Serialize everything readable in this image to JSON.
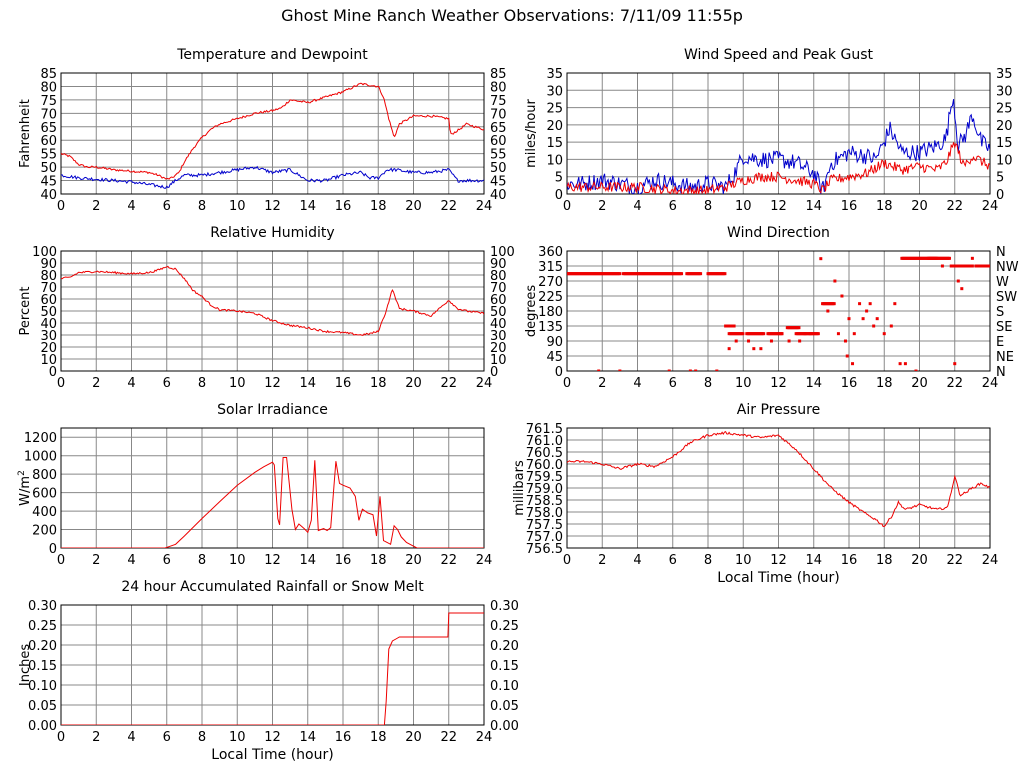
{
  "page": {
    "title": "Ghost Mine Ranch Weather Observations: 7/11/09 11:55p"
  },
  "colors": {
    "red": "#ee0000",
    "blue": "#0000cc",
    "grid": "#888888",
    "frame": "#000000"
  },
  "chart_data": [
    {
      "id": "temp",
      "type": "line",
      "title": "Temperature and Dewpoint",
      "ylabel": "Fahrenheit",
      "xlabel": "",
      "xlim": [
        0,
        24
      ],
      "ylim": [
        40,
        85
      ],
      "xticks": [
        0,
        2,
        4,
        6,
        8,
        10,
        12,
        14,
        16,
        18,
        20,
        22,
        24
      ],
      "yticks": [
        40,
        45,
        50,
        55,
        60,
        65,
        70,
        75,
        80,
        85
      ],
      "right_ticks": [
        "40",
        "45",
        "50",
        "55",
        "60",
        "65",
        "70",
        "75",
        "80",
        "85"
      ],
      "series": [
        {
          "color": "red",
          "noise": 0.4,
          "x": [
            0,
            0.5,
            1,
            1.5,
            2,
            3,
            4,
            5,
            5.5,
            6,
            6.3,
            6.7,
            7,
            7.5,
            8,
            8.5,
            9,
            9.5,
            10,
            11,
            12,
            12.5,
            13,
            14,
            15,
            16,
            17,
            17.5,
            18,
            18.3,
            18.6,
            18.9,
            19.2,
            20,
            21,
            22,
            22.1,
            22.6,
            23,
            24
          ],
          "y": [
            55,
            54,
            51,
            50,
            50,
            49,
            48.5,
            48,
            47,
            45.5,
            46,
            48,
            52,
            57,
            61,
            64,
            66,
            67,
            68,
            70,
            71,
            72,
            75,
            74,
            76,
            78,
            81,
            80.5,
            80,
            76,
            68,
            61,
            66,
            69,
            69,
            68,
            62,
            64,
            66,
            64
          ]
        },
        {
          "color": "blue",
          "noise": 0.6,
          "x": [
            0,
            1,
            2,
            3,
            4,
            5,
            6,
            6.5,
            7,
            8,
            9,
            10,
            11,
            12,
            13,
            14,
            15,
            16,
            17,
            17.5,
            18,
            18.5,
            19,
            20,
            21,
            22,
            22.5,
            23,
            24
          ],
          "y": [
            47,
            46,
            45.5,
            45,
            44.5,
            43.5,
            42.5,
            45,
            47,
            47,
            48,
            49,
            50,
            48,
            49,
            45,
            45,
            47,
            48,
            46,
            46,
            49,
            49,
            48,
            48,
            49,
            45,
            45,
            45
          ]
        }
      ]
    },
    {
      "id": "wind",
      "type": "line",
      "title": "Wind Speed and Peak Gust",
      "ylabel": "miles/hour",
      "xlabel": "",
      "xlim": [
        0,
        24
      ],
      "ylim": [
        0,
        35
      ],
      "xticks": [
        0,
        2,
        4,
        6,
        8,
        10,
        12,
        14,
        16,
        18,
        20,
        22,
        24
      ],
      "yticks": [
        0,
        5,
        10,
        15,
        20,
        25,
        30,
        35
      ],
      "right_ticks": [
        "0",
        "5",
        "10",
        "15",
        "20",
        "25",
        "30",
        "35"
      ],
      "series": [
        {
          "color": "blue",
          "noise": 2.5,
          "x": [
            0,
            1,
            2,
            3,
            4,
            5,
            6,
            7,
            8,
            9,
            9.5,
            10,
            11,
            12,
            13,
            14,
            14.5,
            15,
            16,
            17,
            17.5,
            18,
            18.3,
            19,
            20,
            21,
            21.5,
            21.9,
            22.2,
            22.6,
            23,
            23.5,
            24
          ],
          "y": [
            3,
            3,
            4,
            3,
            2,
            4,
            3,
            2,
            3,
            2,
            6,
            11,
            10,
            10,
            9,
            6,
            1,
            9,
            12,
            11,
            10,
            15,
            19,
            12,
            12,
            14,
            16,
            29,
            14,
            17,
            23,
            15,
            13
          ]
        },
        {
          "color": "red",
          "noise": 1.5,
          "x": [
            0,
            2,
            4,
            6,
            8,
            9,
            10,
            11,
            12,
            13,
            14,
            14.5,
            15,
            16,
            17,
            18,
            19,
            20,
            21,
            21.5,
            22,
            22.5,
            23,
            24
          ],
          "y": [
            2,
            2,
            2,
            1,
            1,
            2,
            4,
            5,
            5,
            4,
            3,
            1,
            4,
            5,
            6,
            9,
            7,
            8,
            7,
            9,
            15,
            8,
            11,
            8
          ]
        }
      ]
    },
    {
      "id": "rh",
      "type": "line",
      "title": "Relative Humidity",
      "ylabel": "Percent",
      "xlabel": "",
      "xlim": [
        0,
        24
      ],
      "ylim": [
        0,
        100
      ],
      "xticks": [
        0,
        2,
        4,
        6,
        8,
        10,
        12,
        14,
        16,
        18,
        20,
        22,
        24
      ],
      "yticks": [
        0,
        10,
        20,
        30,
        40,
        50,
        60,
        70,
        80,
        90,
        100
      ],
      "right_ticks": [
        "0",
        "10",
        "20",
        "30",
        "40",
        "50",
        "60",
        "70",
        "80",
        "90",
        "100"
      ],
      "series": [
        {
          "color": "red",
          "noise": 0.8,
          "x": [
            0,
            0.5,
            1,
            2,
            3,
            4,
            5,
            5.5,
            6,
            6.5,
            7,
            7.5,
            8,
            8.5,
            9,
            10,
            11,
            12,
            13,
            14,
            15,
            16,
            17,
            17.5,
            18,
            18.4,
            18.8,
            19.2,
            20,
            21,
            22,
            22.5,
            23,
            24
          ],
          "y": [
            77,
            78,
            82,
            83,
            82,
            81,
            82,
            84,
            87,
            85,
            77,
            67,
            62,
            55,
            51,
            50,
            48,
            42,
            38,
            36,
            33,
            32,
            30,
            31,
            33,
            48,
            68,
            52,
            50,
            46,
            59,
            52,
            50,
            48
          ]
        }
      ]
    },
    {
      "id": "wdir",
      "type": "scatter",
      "title": "Wind Direction",
      "ylabel": "degrees",
      "xlabel": "",
      "xlim": [
        0,
        24
      ],
      "ylim": [
        0,
        360
      ],
      "xticks": [
        0,
        2,
        4,
        6,
        8,
        10,
        12,
        14,
        16,
        18,
        20,
        22,
        24
      ],
      "yticks": [
        0,
        45,
        90,
        135,
        180,
        225,
        270,
        315,
        360
      ],
      "right_ticks": [
        "N",
        "NE",
        "E",
        "SE",
        "S",
        "SW",
        "W",
        "NW",
        "N"
      ],
      "points": {
        "color": "red",
        "segments": [
          [
            0,
            3,
            292
          ],
          [
            3.2,
            6.5,
            292
          ],
          [
            6.8,
            7.6,
            292
          ],
          [
            8.0,
            9.0,
            292
          ],
          [
            9.0,
            9.5,
            135
          ],
          [
            9.2,
            10.0,
            112
          ],
          [
            10.2,
            11.2,
            112
          ],
          [
            11.4,
            12.2,
            112
          ],
          [
            12.5,
            13.2,
            130
          ],
          [
            13.0,
            14.3,
            112
          ],
          [
            14.5,
            15.2,
            202
          ],
          [
            19.0,
            21.0,
            338
          ],
          [
            20.5,
            21.7,
            338
          ],
          [
            21.8,
            23.0,
            315
          ],
          [
            23.2,
            24.0,
            315
          ]
        ],
        "dots": [
          [
            1.8,
            0
          ],
          [
            3.0,
            0
          ],
          [
            5.8,
            0
          ],
          [
            7.3,
            0
          ],
          [
            7.0,
            0
          ],
          [
            8.5,
            0
          ],
          [
            9.2,
            67
          ],
          [
            9.6,
            90
          ],
          [
            10.3,
            90
          ],
          [
            10.6,
            67
          ],
          [
            11.0,
            67
          ],
          [
            11.6,
            90
          ],
          [
            12.2,
            112
          ],
          [
            12.6,
            90
          ],
          [
            13.2,
            90
          ],
          [
            13.5,
            112
          ],
          [
            13.8,
            112
          ],
          [
            14.4,
            337
          ],
          [
            14.8,
            180
          ],
          [
            15.2,
            270
          ],
          [
            15.4,
            112
          ],
          [
            15.6,
            225
          ],
          [
            15.8,
            90
          ],
          [
            15.9,
            45
          ],
          [
            16.0,
            157
          ],
          [
            16.2,
            22
          ],
          [
            16.3,
            112
          ],
          [
            16.6,
            202
          ],
          [
            16.8,
            157
          ],
          [
            17.0,
            180
          ],
          [
            17.2,
            202
          ],
          [
            17.4,
            135
          ],
          [
            17.6,
            157
          ],
          [
            18.0,
            112
          ],
          [
            18.4,
            135
          ],
          [
            18.6,
            202
          ],
          [
            18.9,
            22
          ],
          [
            19.2,
            22
          ],
          [
            19.8,
            0
          ],
          [
            21.3,
            315
          ],
          [
            22.0,
            22
          ],
          [
            22.2,
            270
          ],
          [
            22.4,
            247
          ],
          [
            22.6,
            315
          ],
          [
            23.0,
            338
          ],
          [
            23.4,
            315
          ]
        ]
      }
    },
    {
      "id": "solar",
      "type": "line",
      "title": "Solar Irradiance",
      "ylabel": "W/m",
      "ylabel_sup": "2",
      "xlabel": "",
      "xlim": [
        0,
        24
      ],
      "ylim": [
        0,
        1300
      ],
      "xticks": [
        0,
        2,
        4,
        6,
        8,
        10,
        12,
        14,
        16,
        18,
        20,
        22,
        24
      ],
      "yticks": [
        0,
        200,
        400,
        600,
        800,
        1000,
        1200
      ],
      "right_ticks": [],
      "series": [
        {
          "color": "red",
          "noise": 0,
          "x": [
            0,
            5.9,
            6.2,
            6.5,
            7,
            8,
            9,
            10,
            11,
            11.5,
            12.0,
            12.1,
            12.3,
            12.4,
            12.6,
            12.8,
            13.1,
            13.3,
            13.5,
            13.8,
            14.0,
            14.2,
            14.4,
            14.6,
            14.9,
            15.1,
            15.3,
            15.6,
            15.8,
            16.0,
            16.4,
            16.7,
            16.9,
            17.1,
            17.4,
            17.7,
            17.9,
            18.1,
            18.3,
            18.7,
            18.9,
            19.1,
            19.3,
            19.6,
            19.8,
            20.2,
            20.5,
            24
          ],
          "y": [
            0,
            0,
            20,
            40,
            130,
            320,
            500,
            680,
            820,
            880,
            930,
            900,
            320,
            250,
            980,
            980,
            420,
            200,
            260,
            210,
            170,
            300,
            950,
            190,
            210,
            190,
            220,
            940,
            700,
            680,
            650,
            560,
            300,
            420,
            380,
            360,
            130,
            560,
            80,
            40,
            240,
            200,
            120,
            60,
            40,
            0,
            0,
            0
          ]
        }
      ]
    },
    {
      "id": "press",
      "type": "line",
      "title": "Air Pressure",
      "ylabel": "millibars",
      "xlabel": "Local Time (hour)",
      "xlim": [
        0,
        24
      ],
      "ylim": [
        756.5,
        761.5
      ],
      "xticks": [
        0,
        2,
        4,
        6,
        8,
        10,
        12,
        14,
        16,
        18,
        20,
        22,
        24
      ],
      "yticks": [
        756.5,
        757.0,
        757.5,
        758.0,
        758.5,
        759.0,
        759.5,
        760.0,
        760.5,
        761.0,
        761.5
      ],
      "ytick_labels": [
        "756.5",
        "757.0",
        "757.5",
        "758.0",
        "758.5",
        "759.0",
        "759.5",
        "760.0",
        "760.5",
        "761.0",
        "761.5"
      ],
      "right_ticks": [],
      "series": [
        {
          "color": "red",
          "noise": 0.05,
          "x": [
            0,
            1,
            2,
            3,
            4,
            5,
            6,
            7,
            8,
            9,
            10,
            11,
            12,
            13,
            14,
            15,
            16,
            17,
            17.5,
            18,
            18.4,
            18.8,
            19.2,
            20,
            21,
            21.6,
            22.0,
            22.3,
            22.6,
            23,
            23.5,
            24
          ],
          "y": [
            760.1,
            760.1,
            760.0,
            759.8,
            760.0,
            759.9,
            760.3,
            760.9,
            761.2,
            761.3,
            761.2,
            761.1,
            761.2,
            760.6,
            759.8,
            759.0,
            758.4,
            757.9,
            757.7,
            757.4,
            757.8,
            758.4,
            758.1,
            758.3,
            758.1,
            758.2,
            759.5,
            758.7,
            758.8,
            759.0,
            759.2,
            759.0
          ]
        }
      ]
    },
    {
      "id": "rain",
      "type": "line",
      "title": "24 hour Accumulated Rainfall or Snow Melt",
      "ylabel": "Inches",
      "xlabel": "Local Time (hour)",
      "xlim": [
        0,
        24
      ],
      "ylim": [
        0,
        0.3
      ],
      "xticks": [
        0,
        2,
        4,
        6,
        8,
        10,
        12,
        14,
        16,
        18,
        20,
        22,
        24
      ],
      "yticks": [
        0,
        0.05,
        0.1,
        0.15,
        0.2,
        0.25,
        0.3
      ],
      "ytick_labels": [
        "0.00",
        "0.05",
        "0.10",
        "0.15",
        "0.20",
        "0.25",
        "0.30"
      ],
      "right_ticks": [
        "0.00",
        "0.05",
        "0.10",
        "0.15",
        "0.20",
        "0.25",
        "0.30"
      ],
      "series": [
        {
          "color": "red",
          "noise": 0,
          "x": [
            0,
            18.35,
            18.45,
            18.6,
            18.8,
            19.0,
            19.2,
            21.95,
            22.0,
            24
          ],
          "y": [
            0,
            0,
            0.06,
            0.19,
            0.21,
            0.215,
            0.22,
            0.22,
            0.28,
            0.28
          ]
        }
      ]
    }
  ]
}
